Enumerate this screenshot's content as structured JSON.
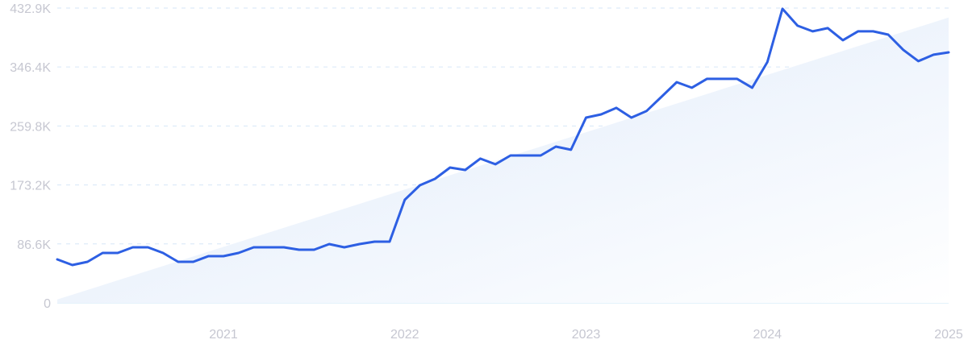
{
  "chart_data": {
    "type": "line",
    "title": "",
    "xlabel": "",
    "ylabel": "",
    "x_start": "2020-02",
    "x_end": "2025-01",
    "x_frequency": "monthly",
    "x_ticks": [
      "2021",
      "2022",
      "2023",
      "2024",
      "2025"
    ],
    "y_ticks": [
      "0",
      "86.6K",
      "173.2K",
      "259.8K",
      "346.4K",
      "432.9K"
    ],
    "y_tick_values": [
      0,
      86600,
      173200,
      259800,
      346400,
      432900
    ],
    "ylim": [
      0,
      432900
    ],
    "grid": "horizontal dashed",
    "values": [
      63900,
      55600,
      60300,
      73300,
      73300,
      81600,
      81600,
      73300,
      60300,
      60300,
      68600,
      68600,
      73300,
      81600,
      81600,
      81600,
      78100,
      78100,
      86400,
      81600,
      86400,
      89900,
      89900,
      151400,
      172700,
      182200,
      198700,
      195200,
      211800,
      203500,
      216500,
      216500,
      216500,
      229500,
      224800,
      272100,
      276800,
      286300,
      272100,
      281600,
      302800,
      324100,
      315900,
      328900,
      328900,
      328900,
      315900,
      353700,
      431800,
      407000,
      398700,
      403400,
      385700,
      398700,
      398700,
      393900,
      371500,
      354900,
      364400,
      367900
    ],
    "trend": {
      "start": 5000,
      "end": 419000
    },
    "colors": {
      "line": "#2d5fe3",
      "trend_fill": "#dde9fa",
      "grid": "#d6e6f7",
      "axis": "#c9e6f7",
      "tick_text": "#c6c7d1"
    }
  }
}
